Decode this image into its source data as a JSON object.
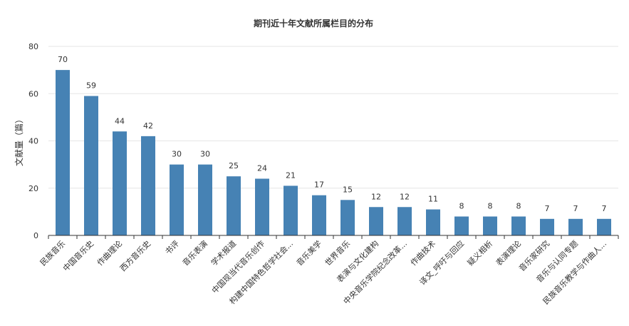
{
  "chart_data": {
    "type": "bar",
    "title": "期刊近十年文献所属栏目的分布",
    "ylabel": "文献量（篇）",
    "xlabel": "",
    "ylim": [
      0,
      80
    ],
    "yticks": [
      0,
      20,
      40,
      60,
      80
    ],
    "grid": true,
    "bar_color": "#4682b4",
    "categories": [
      "民族音乐",
      "中国音乐史",
      "作曲理论",
      "西方音乐史",
      "书评",
      "音乐表演",
      "学术报道",
      "中国现当代音乐创作",
      "构建中国特色哲学社会...",
      "音乐美学",
      "世界音乐",
      "表演与文化建构",
      "中央音乐学院纪念改革...",
      "作曲技术",
      "译文_呼吁与回应",
      "疑义相析",
      "表演理论",
      "音乐家研究",
      "音乐与认同专题",
      "民族音乐教学与作曲人..."
    ],
    "values": [
      70,
      59,
      44,
      42,
      30,
      30,
      25,
      24,
      21,
      17,
      15,
      12,
      12,
      11,
      8,
      8,
      8,
      7,
      7,
      7
    ]
  }
}
